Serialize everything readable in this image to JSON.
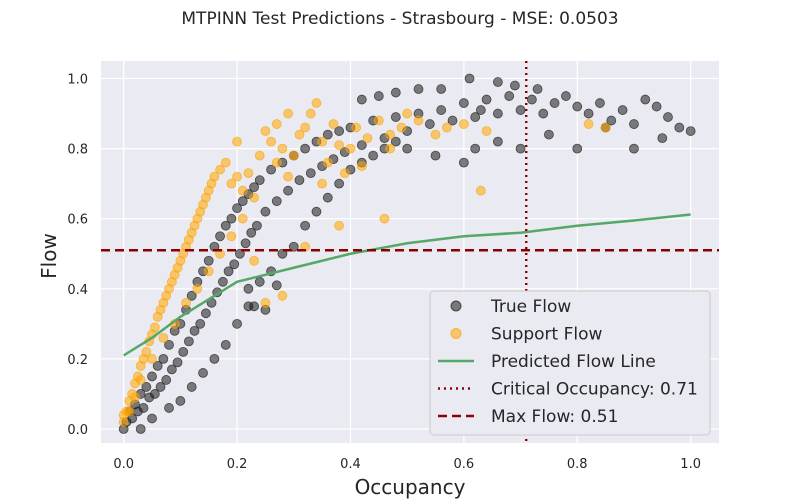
{
  "chart_data": {
    "type": "scatter",
    "title": "MTPINN Test Predictions - Strasbourg - MSE: 0.0503",
    "xlabel": "Occupancy",
    "ylabel": "Flow",
    "xlim": [
      -0.04,
      1.05
    ],
    "ylim": [
      -0.04,
      1.05
    ],
    "x_ticks": [
      "0.0",
      "0.2",
      "0.4",
      "0.6",
      "0.8",
      "1.0"
    ],
    "y_ticks": [
      "0.0",
      "0.2",
      "0.4",
      "0.6",
      "0.8",
      "1.0"
    ],
    "grid": true,
    "legend_position": "lower-right",
    "colors": {
      "background": "#eaeaf2",
      "grid": "#ffffff",
      "true_flow": "#1a1a1a",
      "support_flow": "#ffa500",
      "predicted_line": "#55a868",
      "critical_line": "#8b0000",
      "max_flow_line": "#8b0000"
    },
    "series": [
      {
        "name": "True Flow",
        "kind": "scatter",
        "points": [
          [
            0.0,
            0.0
          ],
          [
            0.005,
            0.02
          ],
          [
            0.01,
            0.05
          ],
          [
            0.015,
            0.03
          ],
          [
            0.02,
            0.07
          ],
          [
            0.025,
            0.05
          ],
          [
            0.03,
            0.1
          ],
          [
            0.035,
            0.06
          ],
          [
            0.04,
            0.12
          ],
          [
            0.045,
            0.09
          ],
          [
            0.05,
            0.15
          ],
          [
            0.055,
            0.1
          ],
          [
            0.06,
            0.18
          ],
          [
            0.065,
            0.12
          ],
          [
            0.07,
            0.2
          ],
          [
            0.075,
            0.14
          ],
          [
            0.08,
            0.24
          ],
          [
            0.085,
            0.17
          ],
          [
            0.09,
            0.28
          ],
          [
            0.095,
            0.19
          ],
          [
            0.1,
            0.3
          ],
          [
            0.105,
            0.22
          ],
          [
            0.11,
            0.34
          ],
          [
            0.115,
            0.25
          ],
          [
            0.12,
            0.38
          ],
          [
            0.125,
            0.28
          ],
          [
            0.13,
            0.42
          ],
          [
            0.135,
            0.3
          ],
          [
            0.14,
            0.45
          ],
          [
            0.145,
            0.33
          ],
          [
            0.15,
            0.48
          ],
          [
            0.155,
            0.36
          ],
          [
            0.16,
            0.52
          ],
          [
            0.165,
            0.39
          ],
          [
            0.17,
            0.55
          ],
          [
            0.175,
            0.42
          ],
          [
            0.18,
            0.58
          ],
          [
            0.185,
            0.45
          ],
          [
            0.19,
            0.6
          ],
          [
            0.195,
            0.47
          ],
          [
            0.2,
            0.63
          ],
          [
            0.205,
            0.5
          ],
          [
            0.21,
            0.65
          ],
          [
            0.215,
            0.53
          ],
          [
            0.22,
            0.67
          ],
          [
            0.225,
            0.56
          ],
          [
            0.23,
            0.69
          ],
          [
            0.235,
            0.58
          ],
          [
            0.24,
            0.71
          ],
          [
            0.25,
            0.62
          ],
          [
            0.26,
            0.74
          ],
          [
            0.27,
            0.65
          ],
          [
            0.28,
            0.76
          ],
          [
            0.29,
            0.68
          ],
          [
            0.3,
            0.78
          ],
          [
            0.31,
            0.71
          ],
          [
            0.32,
            0.8
          ],
          [
            0.33,
            0.73
          ],
          [
            0.34,
            0.82
          ],
          [
            0.35,
            0.75
          ],
          [
            0.36,
            0.84
          ],
          [
            0.37,
            0.77
          ],
          [
            0.38,
            0.85
          ],
          [
            0.39,
            0.79
          ],
          [
            0.4,
            0.86
          ],
          [
            0.42,
            0.81
          ],
          [
            0.44,
            0.88
          ],
          [
            0.46,
            0.83
          ],
          [
            0.48,
            0.89
          ],
          [
            0.5,
            0.85
          ],
          [
            0.52,
            0.9
          ],
          [
            0.54,
            0.87
          ],
          [
            0.56,
            0.91
          ],
          [
            0.58,
            0.88
          ],
          [
            0.6,
            0.93
          ],
          [
            0.62,
            0.89
          ],
          [
            0.64,
            0.94
          ],
          [
            0.66,
            0.9
          ],
          [
            0.68,
            0.95
          ],
          [
            0.7,
            0.91
          ],
          [
            0.72,
            0.94
          ],
          [
            0.74,
            0.9
          ],
          [
            0.76,
            0.93
          ],
          [
            0.78,
            0.95
          ],
          [
            0.8,
            0.92
          ],
          [
            0.82,
            0.9
          ],
          [
            0.84,
            0.93
          ],
          [
            0.86,
            0.88
          ],
          [
            0.88,
            0.91
          ],
          [
            0.9,
            0.87
          ],
          [
            0.92,
            0.94
          ],
          [
            0.94,
            0.92
          ],
          [
            0.96,
            0.89
          ],
          [
            0.98,
            0.86
          ],
          [
            1.0,
            0.85
          ],
          [
            0.03,
            0.0
          ],
          [
            0.05,
            0.03
          ],
          [
            0.08,
            0.06
          ],
          [
            0.1,
            0.08
          ],
          [
            0.12,
            0.12
          ],
          [
            0.14,
            0.16
          ],
          [
            0.16,
            0.2
          ],
          [
            0.18,
            0.24
          ],
          [
            0.2,
            0.3
          ],
          [
            0.22,
            0.35
          ],
          [
            0.24,
            0.42
          ],
          [
            0.26,
            0.45
          ],
          [
            0.28,
            0.5
          ],
          [
            0.3,
            0.52
          ],
          [
            0.32,
            0.58
          ],
          [
            0.34,
            0.62
          ],
          [
            0.36,
            0.66
          ],
          [
            0.38,
            0.7
          ],
          [
            0.4,
            0.74
          ],
          [
            0.42,
            0.76
          ],
          [
            0.44,
            0.78
          ],
          [
            0.46,
            0.8
          ],
          [
            0.48,
            0.82
          ],
          [
            0.5,
            0.8
          ],
          [
            0.55,
            0.78
          ],
          [
            0.6,
            0.76
          ],
          [
            0.62,
            0.8
          ],
          [
            0.66,
            0.82
          ],
          [
            0.7,
            0.8
          ],
          [
            0.75,
            0.84
          ],
          [
            0.8,
            0.8
          ],
          [
            0.85,
            0.86
          ],
          [
            0.9,
            0.8
          ],
          [
            0.95,
            0.83
          ],
          [
            0.23,
            0.35
          ],
          [
            0.25,
            0.34
          ],
          [
            0.27,
            0.41
          ],
          [
            0.22,
            0.4
          ],
          [
            0.63,
            0.91
          ],
          [
            0.66,
            0.99
          ],
          [
            0.61,
            1.0
          ],
          [
            0.69,
            0.98
          ],
          [
            0.73,
            0.97
          ],
          [
            0.56,
            0.97
          ],
          [
            0.48,
            0.96
          ],
          [
            0.52,
            0.97
          ],
          [
            0.45,
            0.95
          ],
          [
            0.42,
            0.94
          ]
        ]
      },
      {
        "name": "Support Flow",
        "kind": "scatter",
        "points": [
          [
            0.0,
            0.02
          ],
          [
            0.005,
            0.05
          ],
          [
            0.01,
            0.08
          ],
          [
            0.015,
            0.1
          ],
          [
            0.02,
            0.13
          ],
          [
            0.025,
            0.15
          ],
          [
            0.03,
            0.18
          ],
          [
            0.035,
            0.2
          ],
          [
            0.04,
            0.22
          ],
          [
            0.045,
            0.25
          ],
          [
            0.05,
            0.27
          ],
          [
            0.055,
            0.29
          ],
          [
            0.06,
            0.32
          ],
          [
            0.065,
            0.34
          ],
          [
            0.07,
            0.36
          ],
          [
            0.075,
            0.38
          ],
          [
            0.08,
            0.4
          ],
          [
            0.085,
            0.42
          ],
          [
            0.09,
            0.44
          ],
          [
            0.095,
            0.46
          ],
          [
            0.1,
            0.48
          ],
          [
            0.105,
            0.5
          ],
          [
            0.11,
            0.52
          ],
          [
            0.115,
            0.54
          ],
          [
            0.12,
            0.56
          ],
          [
            0.125,
            0.58
          ],
          [
            0.13,
            0.6
          ],
          [
            0.135,
            0.62
          ],
          [
            0.14,
            0.64
          ],
          [
            0.145,
            0.66
          ],
          [
            0.15,
            0.68
          ],
          [
            0.155,
            0.7
          ],
          [
            0.16,
            0.72
          ],
          [
            0.17,
            0.74
          ],
          [
            0.18,
            0.76
          ],
          [
            0.19,
            0.7
          ],
          [
            0.2,
            0.72
          ],
          [
            0.21,
            0.68
          ],
          [
            0.22,
            0.73
          ],
          [
            0.23,
            0.66
          ],
          [
            0.24,
            0.78
          ],
          [
            0.25,
            0.85
          ],
          [
            0.26,
            0.82
          ],
          [
            0.27,
            0.76
          ],
          [
            0.28,
            0.8
          ],
          [
            0.29,
            0.72
          ],
          [
            0.3,
            0.78
          ],
          [
            0.31,
            0.84
          ],
          [
            0.32,
            0.86
          ],
          [
            0.33,
            0.9
          ],
          [
            0.34,
            0.93
          ],
          [
            0.35,
            0.82
          ],
          [
            0.36,
            0.76
          ],
          [
            0.37,
            0.87
          ],
          [
            0.38,
            0.81
          ],
          [
            0.39,
            0.73
          ],
          [
            0.4,
            0.8
          ],
          [
            0.41,
            0.86
          ],
          [
            0.43,
            0.83
          ],
          [
            0.45,
            0.88
          ],
          [
            0.47,
            0.84
          ],
          [
            0.49,
            0.86
          ],
          [
            0.52,
            0.88
          ],
          [
            0.55,
            0.84
          ],
          [
            0.63,
            0.68
          ],
          [
            0.46,
            0.6
          ],
          [
            0.38,
            0.58
          ],
          [
            0.32,
            0.52
          ],
          [
            0.28,
            0.38
          ],
          [
            0.25,
            0.36
          ],
          [
            0.23,
            0.48
          ],
          [
            0.21,
            0.6
          ],
          [
            0.19,
            0.55
          ],
          [
            0.17,
            0.5
          ],
          [
            0.15,
            0.45
          ],
          [
            0.13,
            0.4
          ],
          [
            0.11,
            0.36
          ],
          [
            0.09,
            0.3
          ],
          [
            0.07,
            0.26
          ],
          [
            0.05,
            0.2
          ],
          [
            0.03,
            0.14
          ],
          [
            0.02,
            0.09
          ],
          [
            0.01,
            0.05
          ],
          [
            0.0,
            0.04
          ],
          [
            0.2,
            0.82
          ],
          [
            0.27,
            0.87
          ],
          [
            0.29,
            0.9
          ],
          [
            0.35,
            0.7
          ],
          [
            0.42,
            0.75
          ],
          [
            0.5,
            0.9
          ],
          [
            0.57,
            0.86
          ],
          [
            0.6,
            0.87
          ],
          [
            0.64,
            0.85
          ],
          [
            0.82,
            0.87
          ],
          [
            0.85,
            0.86
          ],
          [
            0.47,
            0.8
          ]
        ]
      },
      {
        "name": "Predicted Flow Line",
        "kind": "line",
        "points": [
          [
            0.0,
            0.21
          ],
          [
            0.05,
            0.26
          ],
          [
            0.1,
            0.32
          ],
          [
            0.15,
            0.37
          ],
          [
            0.2,
            0.42
          ],
          [
            0.3,
            0.46
          ],
          [
            0.4,
            0.5
          ],
          [
            0.5,
            0.53
          ],
          [
            0.6,
            0.55
          ],
          [
            0.7,
            0.56
          ],
          [
            0.8,
            0.58
          ],
          [
            0.9,
            0.595
          ],
          [
            1.0,
            0.612
          ]
        ]
      }
    ],
    "reference_lines": [
      {
        "name": "Critical Occupancy: 0.71",
        "orientation": "vertical",
        "value": 0.71
      },
      {
        "name": "Max Flow: 0.51",
        "orientation": "horizontal",
        "value": 0.51
      }
    ],
    "legend": [
      {
        "label": "True Flow",
        "marker": "circle"
      },
      {
        "label": "Support Flow",
        "marker": "circle"
      },
      {
        "label": "Predicted Flow Line",
        "marker": "line"
      },
      {
        "label": "Critical Occupancy: 0.71",
        "marker": "dotted-line"
      },
      {
        "label": "Max Flow: 0.51",
        "marker": "dashed-line"
      }
    ]
  }
}
